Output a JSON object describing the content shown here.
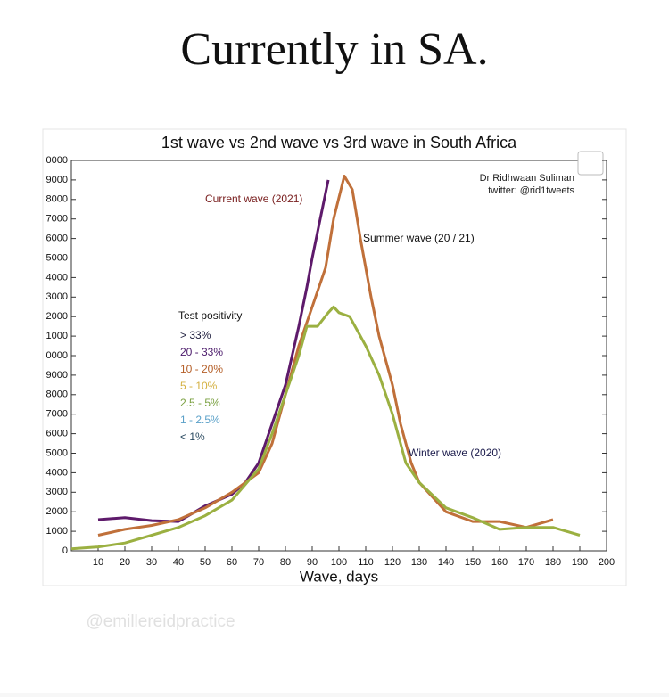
{
  "post": {
    "title": "Currently in SA.",
    "watermark": "@emillereidpractice"
  },
  "chart_data": {
    "type": "line",
    "title": "1st wave vs 2nd wave vs 3rd wave in South Africa",
    "annotations": [
      "Dr Ridhwaan Suliman",
      "twitter: @rid1tweets"
    ],
    "xlabel": "Wave, days",
    "legend_title": "Test positivity",
    "positivity": [
      {
        "label": "> 33%",
        "color": "#1c1c3c"
      },
      {
        "label": "20 - 33%",
        "color": "#4b1a6b"
      },
      {
        "label": "10 - 20%",
        "color": "#b5602a"
      },
      {
        "label": "5  - 10%",
        "color": "#d4b040"
      },
      {
        "label": "2.5 -  5%",
        "color": "#7aa040"
      },
      {
        "label": "1   - 2.5%",
        "color": "#5aa0c8"
      },
      {
        "label": "< 1%",
        "color": "#2a4a60"
      }
    ],
    "xlim": [
      0,
      200
    ],
    "xticks": [
      10,
      20,
      30,
      40,
      50,
      60,
      70,
      80,
      90,
      100,
      110,
      120,
      130,
      140,
      150,
      160,
      170,
      180,
      190,
      200
    ],
    "ylim": [
      0,
      20000
    ],
    "yticks": [
      0,
      1000,
      2000,
      3000,
      4000,
      5000,
      6000,
      7000,
      8000,
      9000,
      {
        "value": 10000,
        "label": "0000"
      },
      {
        "value": 11000,
        "label": "1000"
      },
      {
        "value": 12000,
        "label": "2000"
      },
      {
        "value": 13000,
        "label": "3000"
      },
      {
        "value": 14000,
        "label": "4000"
      },
      {
        "value": 15000,
        "label": "5000"
      },
      {
        "value": 16000,
        "label": "6000"
      },
      {
        "value": 17000,
        "label": "7000"
      },
      {
        "value": 18000,
        "label": "8000"
      },
      {
        "value": 19000,
        "label": "9000"
      },
      {
        "value": 20000,
        "label": "0000"
      }
    ],
    "series": [
      {
        "name": "Current wave (2021)",
        "color": "#5e1a6b",
        "label_color": "#7a2020",
        "x": [
          10,
          20,
          30,
          40,
          45,
          50,
          55,
          60,
          65,
          70,
          75,
          80,
          85,
          88,
          90,
          93,
          96
        ],
        "values": [
          1600,
          1700,
          1550,
          1500,
          1900,
          2300,
          2600,
          2900,
          3500,
          4500,
          6500,
          8500,
          11500,
          13500,
          15000,
          17000,
          19000
        ]
      },
      {
        "name": "Summer wave (20 / 21)",
        "color": "#c0703a",
        "label_color": "#111111",
        "x": [
          10,
          20,
          30,
          40,
          50,
          60,
          70,
          75,
          80,
          85,
          90,
          95,
          98,
          102,
          105,
          108,
          112,
          115,
          120,
          123,
          127,
          130,
          140,
          150,
          160,
          170,
          180
        ],
        "values": [
          800,
          1100,
          1300,
          1600,
          2200,
          3000,
          4000,
          5500,
          8000,
          10500,
          12500,
          14500,
          17000,
          19200,
          18500,
          16000,
          13000,
          11000,
          8500,
          6500,
          4500,
          3500,
          2000,
          1500,
          1500,
          1200,
          1600
        ]
      },
      {
        "name": "Winter wave (2020)",
        "color": "#9bb041",
        "label_color": "#1c1c4c",
        "x": [
          0,
          10,
          20,
          30,
          40,
          50,
          60,
          70,
          75,
          80,
          85,
          88,
          92,
          96,
          98,
          100,
          104,
          110,
          115,
          120,
          125,
          130,
          140,
          150,
          160,
          170,
          180,
          190
        ],
        "values": [
          100,
          200,
          400,
          800,
          1200,
          1800,
          2600,
          4200,
          6000,
          8000,
          10000,
          11500,
          11500,
          12200,
          12500,
          12200,
          12000,
          10500,
          9000,
          7000,
          4500,
          3500,
          2200,
          1700,
          1100,
          1200,
          1200,
          800
        ]
      }
    ]
  }
}
